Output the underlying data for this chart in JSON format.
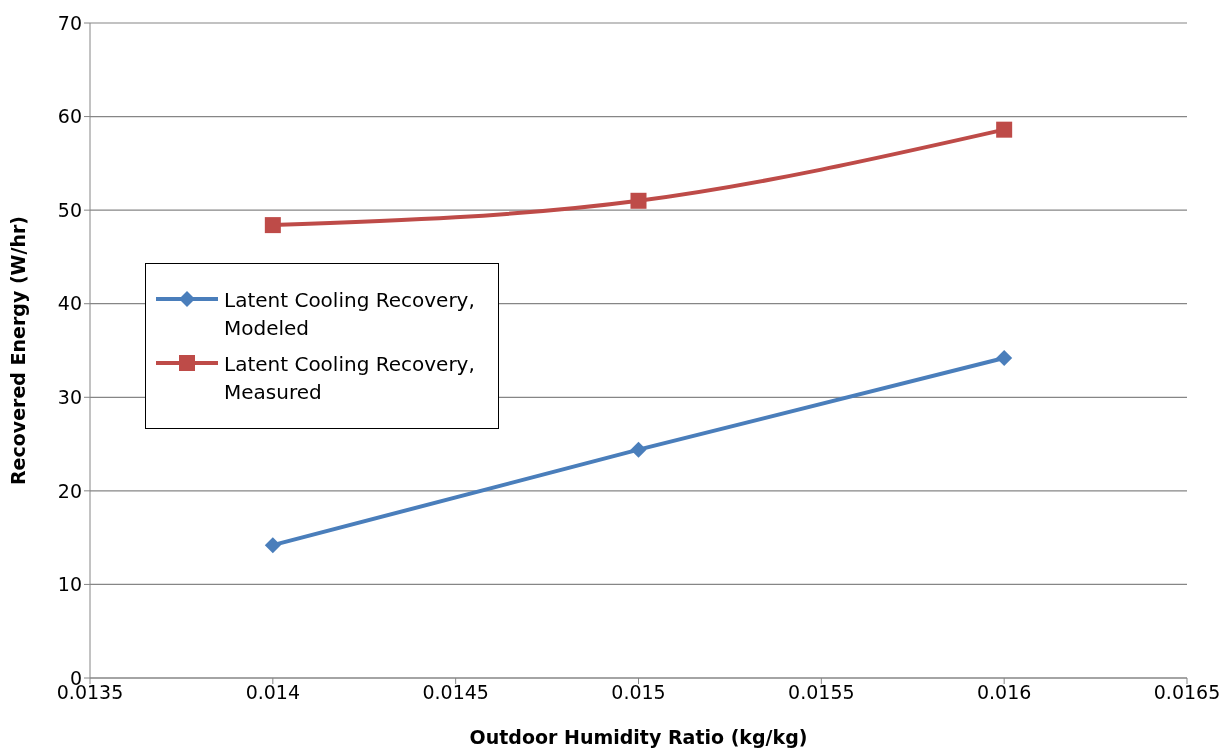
{
  "chart_data": {
    "type": "line",
    "xlabel": "Outdoor Humidity Ratio (kg/kg)",
    "ylabel": "Recovered Energy (W/hr)",
    "x": [
      0.014,
      0.015,
      0.016
    ],
    "series": [
      {
        "name": "Latent Cooling Recovery, Modeled",
        "color": "#4a7ebb",
        "marker": "diamond",
        "values": [
          14.2,
          24.4,
          34.2
        ]
      },
      {
        "name": "Latent Cooling Recovery, Measured",
        "color": "#be4b48",
        "marker": "square",
        "values": [
          48.4,
          51.0,
          58.6
        ]
      }
    ],
    "xlim": [
      0.0135,
      0.0165
    ],
    "xticks": [
      0.0135,
      0.014,
      0.0145,
      0.015,
      0.0155,
      0.016,
      0.0165
    ],
    "ylim": [
      0,
      70
    ],
    "yticks": [
      0,
      10,
      20,
      30,
      40,
      50,
      60,
      70
    ],
    "grid": "y",
    "legend": "left",
    "line_style": "solid"
  }
}
